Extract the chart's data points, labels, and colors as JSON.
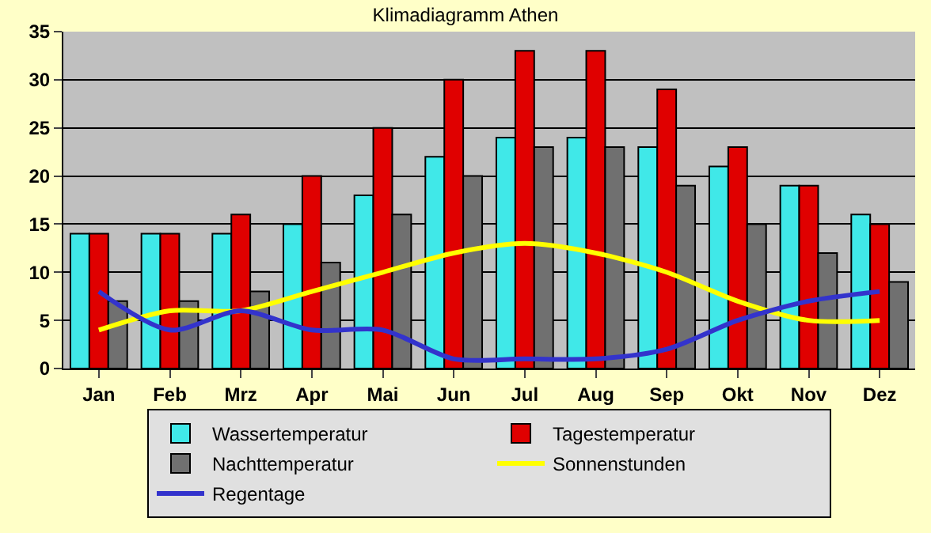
{
  "chart_data": {
    "type": "bar",
    "title": "Klimadiagramm Athen",
    "categories": [
      "Jan",
      "Feb",
      "Mrz",
      "Apr",
      "Mai",
      "Jun",
      "Jul",
      "Aug",
      "Sep",
      "Okt",
      "Nov",
      "Dez"
    ],
    "series": [
      {
        "name": "Wassertemperatur",
        "color": "#40e8e8",
        "values": [
          14,
          14,
          14,
          15,
          18,
          22,
          24,
          24,
          23,
          21,
          19,
          16
        ]
      },
      {
        "name": "Tagestemperatur",
        "color": "#e00000",
        "values": [
          14,
          14,
          16,
          20,
          25,
          30,
          33,
          33,
          29,
          23,
          19,
          15
        ]
      },
      {
        "name": "Nachttemperatur",
        "color": "#707070",
        "values": [
          7,
          7,
          8,
          11,
          16,
          20,
          23,
          23,
          19,
          15,
          12,
          9
        ]
      },
      {
        "name": "Sonnenstunden",
        "type": "line",
        "color": "#ffff00",
        "values": [
          4,
          6,
          6,
          8,
          10,
          12,
          13,
          12,
          10,
          7,
          5,
          5
        ]
      },
      {
        "name": "Regentage",
        "type": "line",
        "color": "#3333cc",
        "values": [
          8,
          4,
          6,
          4,
          4,
          1,
          1,
          1,
          2,
          5,
          7,
          8
        ]
      }
    ],
    "ylim": [
      0,
      35
    ],
    "yticks": [
      0,
      5,
      10,
      15,
      20,
      25,
      30,
      35
    ],
    "grid": "y",
    "legend": "bottom",
    "marker": "none",
    "line_style": "solid"
  }
}
